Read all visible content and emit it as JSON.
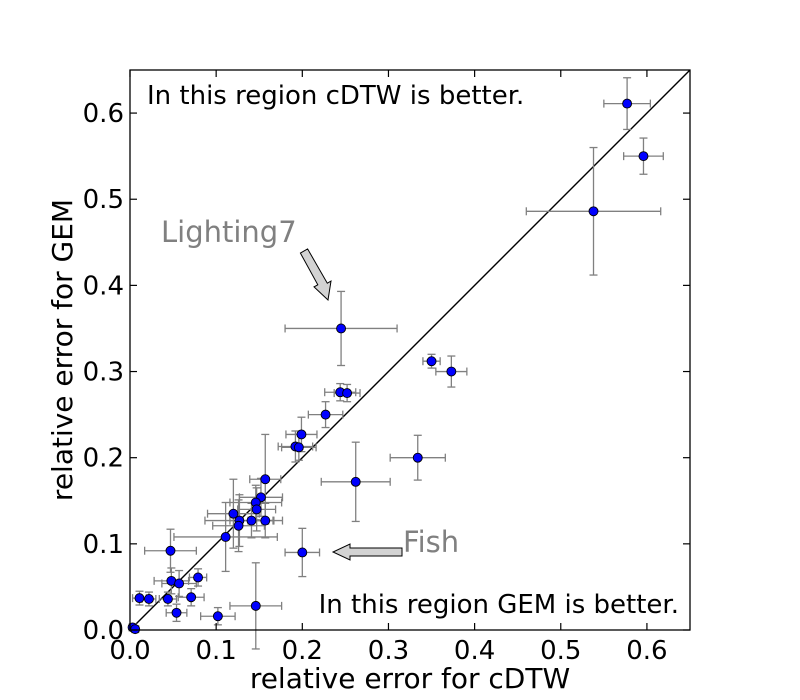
{
  "chart_data": {
    "type": "scatter",
    "xlabel": "relative error for cDTW",
    "ylabel": "relative error for GEM",
    "xlim": [
      0.0,
      0.65
    ],
    "ylim": [
      0.0,
      0.65
    ],
    "xticks": [
      "0.0",
      "0.1",
      "0.2",
      "0.3",
      "0.4",
      "0.5",
      "0.6"
    ],
    "yticks": [
      "0.0",
      "0.1",
      "0.2",
      "0.3",
      "0.4",
      "0.5",
      "0.6"
    ],
    "grid": false,
    "diagonal": "y = x",
    "marker_color": "#0000ff",
    "errorbar_color": "#808080",
    "annotations": {
      "upper_region": "In this region cDTW is better.",
      "lower_region": "In this region GEM is better.",
      "lighting": "Lighting7",
      "fish": "Fish"
    },
    "points": [
      {
        "x": 0.577,
        "y": 0.611,
        "xerr": 0.027,
        "yerr": 0.03
      },
      {
        "x": 0.596,
        "y": 0.55,
        "xerr": 0.023,
        "yerr": 0.021
      },
      {
        "x": 0.538,
        "y": 0.486,
        "xerr": 0.078,
        "yerr": 0.074
      },
      {
        "x": 0.245,
        "y": 0.35,
        "xerr": 0.065,
        "yerr": 0.043
      },
      {
        "x": 0.35,
        "y": 0.312,
        "xerr": 0.01,
        "yerr": 0.008
      },
      {
        "x": 0.373,
        "y": 0.3,
        "xerr": 0.018,
        "yerr": 0.018
      },
      {
        "x": 0.244,
        "y": 0.276,
        "xerr": 0.018,
        "yerr": 0.01
      },
      {
        "x": 0.252,
        "y": 0.275,
        "xerr": 0.015,
        "yerr": 0.01
      },
      {
        "x": 0.227,
        "y": 0.25,
        "xerr": 0.02,
        "yerr": 0.015
      },
      {
        "x": 0.199,
        "y": 0.227,
        "xerr": 0.018,
        "yerr": 0.02
      },
      {
        "x": 0.192,
        "y": 0.213,
        "xerr": 0.02,
        "yerr": 0.018
      },
      {
        "x": 0.196,
        "y": 0.212,
        "xerr": 0.02,
        "yerr": 0.015
      },
      {
        "x": 0.334,
        "y": 0.2,
        "xerr": 0.032,
        "yerr": 0.026
      },
      {
        "x": 0.262,
        "y": 0.172,
        "xerr": 0.04,
        "yerr": 0.046
      },
      {
        "x": 0.157,
        "y": 0.175,
        "xerr": 0.018,
        "yerr": 0.052
      },
      {
        "x": 0.152,
        "y": 0.154,
        "xerr": 0.025,
        "yerr": 0.022
      },
      {
        "x": 0.146,
        "y": 0.148,
        "xerr": 0.03,
        "yerr": 0.02
      },
      {
        "x": 0.147,
        "y": 0.14,
        "xerr": 0.022,
        "yerr": 0.025
      },
      {
        "x": 0.12,
        "y": 0.135,
        "xerr": 0.03,
        "yerr": 0.04
      },
      {
        "x": 0.127,
        "y": 0.127,
        "xerr": 0.04,
        "yerr": 0.03
      },
      {
        "x": 0.141,
        "y": 0.127,
        "xerr": 0.025,
        "yerr": 0.02
      },
      {
        "x": 0.157,
        "y": 0.127,
        "xerr": 0.02,
        "yerr": 0.02
      },
      {
        "x": 0.126,
        "y": 0.121,
        "xerr": 0.03,
        "yerr": 0.03
      },
      {
        "x": 0.111,
        "y": 0.108,
        "xerr": 0.06,
        "yerr": 0.04
      },
      {
        "x": 0.2,
        "y": 0.09,
        "xerr": 0.02,
        "yerr": 0.028
      },
      {
        "x": 0.047,
        "y": 0.092,
        "xerr": 0.03,
        "yerr": 0.025
      },
      {
        "x": 0.079,
        "y": 0.061,
        "xerr": 0.01,
        "yerr": 0.01
      },
      {
        "x": 0.048,
        "y": 0.057,
        "xerr": 0.02,
        "yerr": 0.015
      },
      {
        "x": 0.057,
        "y": 0.054,
        "xerr": 0.02,
        "yerr": 0.015
      },
      {
        "x": 0.011,
        "y": 0.037,
        "xerr": 0.008,
        "yerr": 0.008
      },
      {
        "x": 0.022,
        "y": 0.036,
        "xerr": 0.008,
        "yerr": 0.008
      },
      {
        "x": 0.044,
        "y": 0.036,
        "xerr": 0.01,
        "yerr": 0.008
      },
      {
        "x": 0.071,
        "y": 0.038,
        "xerr": 0.015,
        "yerr": 0.01
      },
      {
        "x": 0.146,
        "y": 0.028,
        "xerr": 0.03,
        "yerr": 0.05
      },
      {
        "x": 0.054,
        "y": 0.02,
        "xerr": 0.012,
        "yerr": 0.01
      },
      {
        "x": 0.102,
        "y": 0.016,
        "xerr": 0.02,
        "yerr": 0.01
      },
      {
        "x": 0.003,
        "y": 0.003,
        "xerr": 0.004,
        "yerr": 0.003
      },
      {
        "x": 0.006,
        "y": 0.001,
        "xerr": 0.004,
        "yerr": 0.002
      }
    ]
  }
}
